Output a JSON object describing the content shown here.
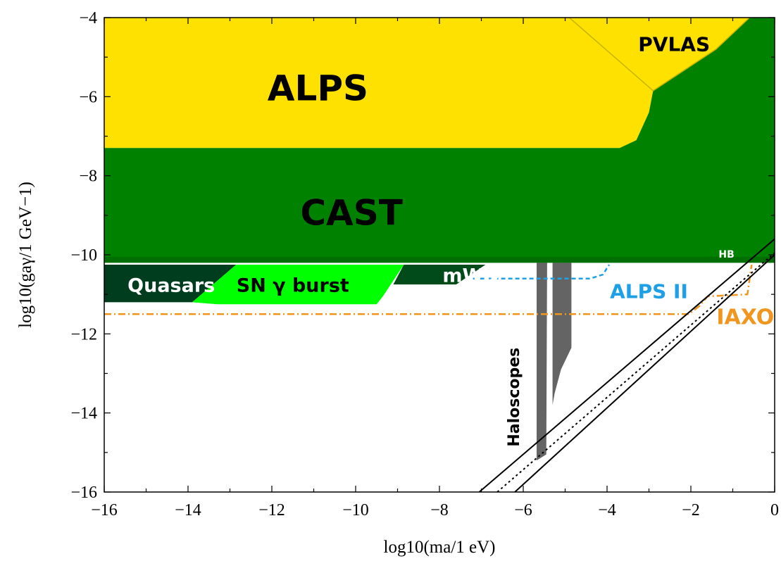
{
  "chart_data": {
    "type": "area",
    "xlabel": "log10(ma/1 eV)",
    "ylabel": "log10(gaγ/1 GeV−1)",
    "xlim": [
      -16,
      0
    ],
    "ylim": [
      -16,
      -4
    ],
    "x_ticks": [
      "−16",
      "−14",
      "−12",
      "−10",
      "−8",
      "−6",
      "−4",
      "−2",
      "0"
    ],
    "y_ticks": [
      "−4",
      "−6",
      "−8",
      "−10",
      "−12",
      "−14",
      "−16"
    ],
    "grid": false,
    "colors": {
      "alps": "#ffe100",
      "cast": "#008200",
      "cast_dark": "#006e00",
      "quasars": "#003c1e",
      "sn": "#00ff00",
      "mwd": "#004b19",
      "haloscopes": "#646464",
      "pvlas_line": "#c8b400",
      "alps2": "#1ea0e6",
      "iaxo": "#f0961e",
      "band": "#000000"
    },
    "regions": [
      {
        "label": "ALPS",
        "points": [
          [
            -16,
            -4
          ],
          [
            0,
            -4
          ],
          [
            -2.9,
            -5.85
          ],
          [
            -3.0,
            -6.4
          ],
          [
            -3.3,
            -7.1
          ],
          [
            -3.7,
            -7.3
          ],
          [
            -16,
            -7.3
          ]
        ]
      },
      {
        "label": "CAST",
        "points": [
          [
            -16,
            -7.3
          ],
          [
            -3.7,
            -7.3
          ],
          [
            -3.3,
            -7.1
          ],
          [
            -3.0,
            -6.4
          ],
          [
            -2.9,
            -5.85
          ],
          [
            -1.4,
            -4.8
          ],
          [
            -0.6,
            -4
          ],
          [
            0,
            -4
          ],
          [
            0,
            -10.2
          ],
          [
            -16,
            -10.2
          ]
        ]
      },
      {
        "label": "Quasars",
        "points": [
          [
            -16,
            -10.25
          ],
          [
            -12.85,
            -10.25
          ],
          [
            -13.9,
            -11.2
          ],
          [
            -16,
            -11.2
          ]
        ]
      },
      {
        "label": "SN γ burst",
        "points": [
          [
            -12.85,
            -10.25
          ],
          [
            -8.85,
            -10.25
          ],
          [
            -9.35,
            -11.05
          ],
          [
            -9.5,
            -11.25
          ],
          [
            -13.3,
            -11.25
          ],
          [
            -13.9,
            -11.2
          ]
        ]
      },
      {
        "label": "mWD",
        "points": [
          [
            -8.85,
            -10.25
          ],
          [
            -6.9,
            -10.25
          ],
          [
            -7.6,
            -10.75
          ],
          [
            -9.1,
            -10.75
          ]
        ]
      },
      {
        "label": "Haloscopes",
        "points": [
          [
            -5.68,
            -10.2
          ],
          [
            -5.43,
            -10.2
          ],
          [
            -5.45,
            -15.05
          ],
          [
            -5.68,
            -15.2
          ]
        ]
      },
      {
        "label": "Haloscopes",
        "points": [
          [
            -5.3,
            -10.2
          ],
          [
            -4.85,
            -10.2
          ],
          [
            -4.85,
            -12.35
          ],
          [
            -5.1,
            -12.9
          ],
          [
            -5.25,
            -13.5
          ],
          [
            -5.3,
            -13.8
          ]
        ]
      }
    ],
    "curves": [
      {
        "label": "PVLAS",
        "points": [
          [
            -4.9,
            -4
          ],
          [
            -2.9,
            -5.85
          ],
          [
            -1.4,
            -4.8
          ],
          [
            -0.6,
            -4
          ]
        ]
      },
      {
        "label": "ALPS II",
        "points": [
          [
            -7.2,
            -10.6
          ],
          [
            -4.4,
            -10.6
          ],
          [
            -4.1,
            -10.5
          ],
          [
            -3.95,
            -10.25
          ]
        ]
      },
      {
        "label": "IAXO",
        "points": [
          [
            -16,
            -11.5
          ],
          [
            -2.05,
            -11.5
          ],
          [
            -1.8,
            -11.3
          ],
          [
            -1.6,
            -11.05
          ],
          [
            -0.65,
            -11.0
          ],
          [
            -0.55,
            -10.25
          ]
        ]
      },
      {
        "label": "band",
        "points": [
          [
            -7.05,
            -16
          ],
          [
            0,
            -9.6
          ]
        ]
      },
      {
        "label": "band",
        "points": [
          [
            -6.62,
            -16
          ],
          [
            0,
            -9.95
          ]
        ]
      },
      {
        "label": "band",
        "points": [
          [
            -6.2,
            -16
          ],
          [
            0,
            -10.0
          ]
        ]
      }
    ],
    "labels": [
      {
        "text": "ALPS",
        "x": -10.9,
        "y": -5.85
      },
      {
        "text": "PVLAS",
        "x": -2.4,
        "y": -4.7
      },
      {
        "text": "CAST",
        "x": -10.1,
        "y": -9.0
      },
      {
        "text": "HB",
        "x": -1.15,
        "y": -10.0
      },
      {
        "text": "Quasars",
        "x": -14.4,
        "y": -10.8
      },
      {
        "text": "SN γ burst",
        "x": -11.5,
        "y": -10.8
      },
      {
        "text": "mWD",
        "x": -7.25,
        "y": -10.55
      },
      {
        "text": "ALPS II",
        "x": -3.0,
        "y": -10.95
      },
      {
        "text": "IAXO",
        "x": -0.7,
        "y": -11.6
      },
      {
        "text": "Haloscopes",
        "x": -6.2,
        "y": -13.6
      }
    ]
  }
}
